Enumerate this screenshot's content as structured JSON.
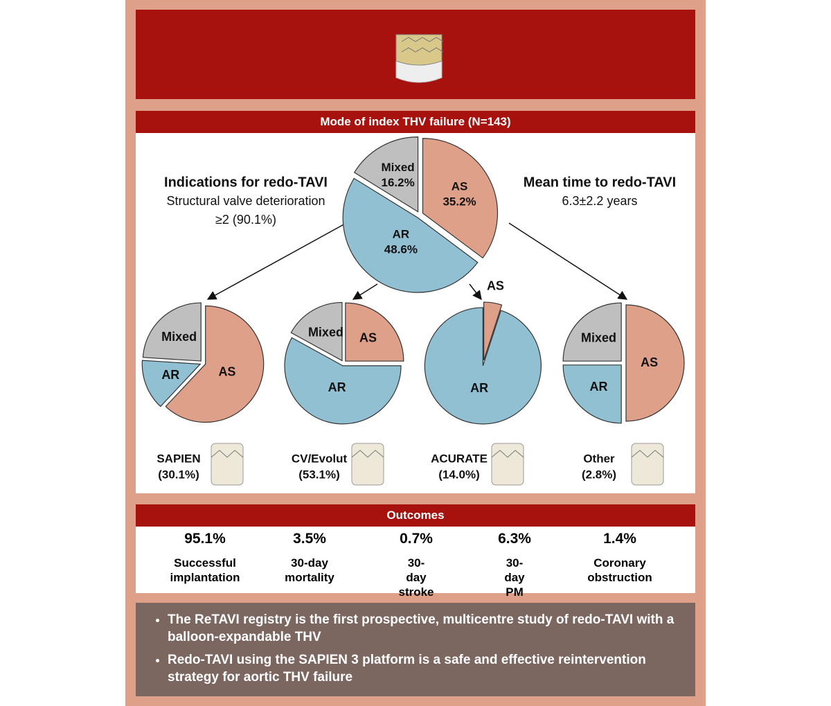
{
  "mode": {
    "title": "Mode of index THV failure (N=143)",
    "main_pie": {
      "type": "pie",
      "labels": [
        "AS",
        "AR",
        "Mixed"
      ],
      "values": [
        35.2,
        48.6,
        16.2
      ],
      "value_labels": [
        "35.2%",
        "48.6%",
        "16.2%"
      ],
      "colors": [
        "#dfa08a",
        "#92c0d3",
        "#bfbfbf"
      ]
    },
    "indications": {
      "title": "Indications for redo-TAVI",
      "lines": [
        "Structural valve deterioration",
        "≥2 (90.1%)"
      ]
    },
    "mean_time": {
      "title": "Mean time to redo-TAVI",
      "value": "6.3±2.2 years"
    },
    "devices": [
      {
        "name": "SAPIEN",
        "share": "(30.1%)",
        "pie": {
          "type": "pie",
          "labels": [
            "AS",
            "AR",
            "Mixed"
          ],
          "values": [
            62,
            14,
            24
          ],
          "colors": [
            "#dfa08a",
            "#92c0d3",
            "#bfbfbf"
          ]
        }
      },
      {
        "name": "CV/Evolut",
        "share": "(53.1%)",
        "pie": {
          "type": "pie",
          "labels": [
            "AS",
            "AR",
            "Mixed"
          ],
          "values": [
            25,
            58,
            17
          ],
          "colors": [
            "#dfa08a",
            "#92c0d3",
            "#bfbfbf"
          ]
        }
      },
      {
        "name": "ACURATE",
        "share": "(14.0%)",
        "pie": {
          "type": "pie",
          "labels": [
            "AS",
            "AR"
          ],
          "values": [
            5,
            95
          ],
          "colors": [
            "#dfa08a",
            "#92c0d3"
          ]
        }
      },
      {
        "name": "Other",
        "share": "(2.8%)",
        "pie": {
          "type": "pie",
          "labels": [
            "AS",
            "AR",
            "Mixed"
          ],
          "values": [
            50,
            25,
            25
          ],
          "colors": [
            "#dfa08a",
            "#92c0d3",
            "#bfbfbf"
          ]
        }
      }
    ]
  },
  "outcomes": {
    "title": "Outcomes",
    "items": [
      {
        "value": "95.1%",
        "label": "Successful implantation"
      },
      {
        "value": "3.5%",
        "label": "30-day mortality"
      },
      {
        "value": "0.7%",
        "label": "30-day stroke"
      },
      {
        "value": "6.3%",
        "label": "30-day PM"
      },
      {
        "value": "1.4%",
        "label": "Coronary obstruction"
      }
    ]
  },
  "summary": {
    "bullets": [
      "The ReTAVI registry is the first prospective, multicentre study of redo-TAVI with a balloon-expandable THV",
      "Redo-TAVI using the SAPIEN 3 platform is a safe and effective reintervention strategy for aortic THV failure"
    ]
  }
}
